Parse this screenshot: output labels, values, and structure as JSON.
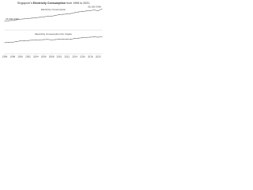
{
  "title_prefix": "Singapore's",
  "title_bold": "Electricity Consumption",
  "title_suffix": "from 1996 to 2021",
  "chart_data": [
    {
      "type": "line",
      "title": "Electricity Consumption",
      "x": [
        1996,
        1997,
        1998,
        1999,
        2000,
        2001,
        2002,
        2003,
        2004,
        2005,
        2006,
        2007,
        2008,
        2009,
        2010,
        2011,
        2012,
        2013,
        2014,
        2015,
        2016,
        2017,
        2018,
        2019,
        2020,
        2021
      ],
      "series": [
        {
          "name": "Electricity Consumption",
          "color": "#555555",
          "values": [
            23000,
            24500,
            25200,
            26800,
            28500,
            29300,
            30400,
            31200,
            32400,
            33400,
            34600,
            35900,
            36500,
            38000,
            40500,
            41200,
            42000,
            43200,
            45700,
            47500,
            48600,
            50000,
            51200,
            52300,
            50700,
            55100
          ],
          "value_labels": [
            "23,000 GWh",
            null,
            null,
            null,
            null,
            null,
            null,
            null,
            null,
            null,
            null,
            null,
            null,
            null,
            null,
            null,
            null,
            null,
            null,
            null,
            null,
            null,
            null,
            null,
            null,
            "55,100 GWh"
          ]
        }
      ],
      "xlim": [
        1996,
        2021
      ],
      "ylim": [
        0,
        60000
      ]
    },
    {
      "type": "line",
      "title": "Electricity Consumption Per Capita",
      "x": [
        1996,
        1997,
        1998,
        1999,
        2000,
        2001,
        2002,
        2003,
        2004,
        2005,
        2006,
        2007,
        2008,
        2009,
        2010,
        2011,
        2012,
        2013,
        2014,
        2015,
        2016,
        2017,
        2018,
        2019,
        2020,
        2021
      ],
      "series": [
        {
          "name": "Electricity Consumption Per Capita",
          "color": "#555555",
          "values": [
            6050,
            6250,
            6300,
            6600,
            7000,
            7050,
            7200,
            7400,
            7500,
            7600,
            7700,
            7800,
            7600,
            7700,
            7900,
            7900,
            7900,
            7950,
            8300,
            8500,
            8700,
            8900,
            9000,
            9200,
            9000,
            9300
          ]
        }
      ],
      "xlim": [
        1996,
        2021
      ],
      "ylim": [
        0,
        12000
      ],
      "xticks": [
        1996,
        1998,
        2000,
        2002,
        2004,
        2006,
        2008,
        2010,
        2012,
        2014,
        2016,
        2018,
        2020
      ]
    }
  ]
}
